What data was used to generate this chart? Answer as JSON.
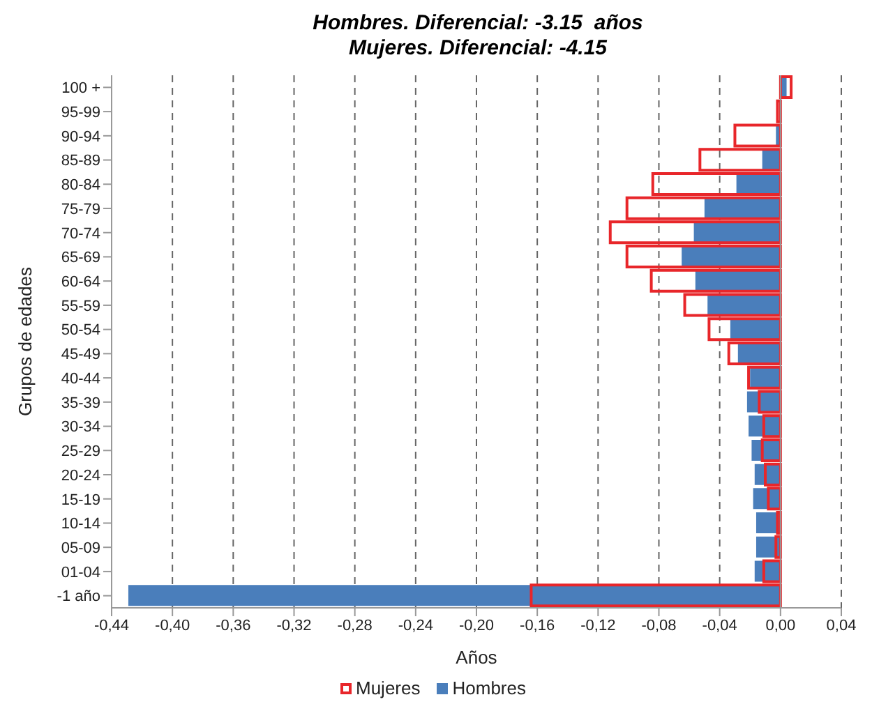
{
  "chart_data": {
    "type": "bar",
    "orientation": "horizontal",
    "title": "Hombres. Diferencial: -3.15  años",
    "subtitle": "Mujeres. Diferencial: -4.15",
    "xlabel": "Años",
    "ylabel": "Grupos de edades",
    "categories": [
      "100 +",
      "95-99",
      "90-94",
      "85-89",
      "80-84",
      "75-79",
      "70-74",
      "65-69",
      "60-64",
      "55-59",
      "50-54",
      "45-49",
      "40-44",
      "35-39",
      "30-34",
      "25-29",
      "20-24",
      "15-19",
      "10-14",
      "05-09",
      "01-04",
      "-1 año"
    ],
    "series": [
      {
        "name": "Mujeres",
        "color": "#e8262a",
        "values": [
          0.007,
          -0.002,
          -0.03,
          -0.053,
          -0.084,
          -0.101,
          -0.112,
          -0.101,
          -0.085,
          -0.063,
          -0.047,
          -0.034,
          -0.021,
          -0.014,
          -0.011,
          -0.012,
          -0.01,
          -0.008,
          -0.002,
          -0.003,
          -0.011,
          -0.164
        ]
      },
      {
        "name": "Hombres",
        "color": "#4a7ebb",
        "values": [
          0.004,
          null,
          -0.003,
          -0.012,
          -0.029,
          -0.05,
          -0.057,
          -0.065,
          -0.056,
          -0.048,
          -0.033,
          -0.028,
          -0.02,
          -0.022,
          -0.021,
          -0.019,
          -0.017,
          -0.018,
          -0.016,
          -0.016,
          -0.017,
          -0.429
        ]
      }
    ],
    "xlim": [
      -0.44,
      0.04
    ],
    "xticks": [
      {
        "value": -0.44,
        "label": "-0,44"
      },
      {
        "value": -0.4,
        "label": "-0,40"
      },
      {
        "value": -0.36,
        "label": "-0,36"
      },
      {
        "value": -0.32,
        "label": "-0,32"
      },
      {
        "value": -0.28,
        "label": "-0,28"
      },
      {
        "value": -0.24,
        "label": "-0,24"
      },
      {
        "value": -0.2,
        "label": "-0,20"
      },
      {
        "value": -0.16,
        "label": "-0,16"
      },
      {
        "value": -0.12,
        "label": "-0,12"
      },
      {
        "value": -0.08,
        "label": "-0,08"
      },
      {
        "value": -0.04,
        "label": "-0,04"
      },
      {
        "value": 0,
        "label": "0,00"
      },
      {
        "value": 0.04,
        "label": "0,04"
      }
    ],
    "grid": "x",
    "legend": "bottom"
  }
}
